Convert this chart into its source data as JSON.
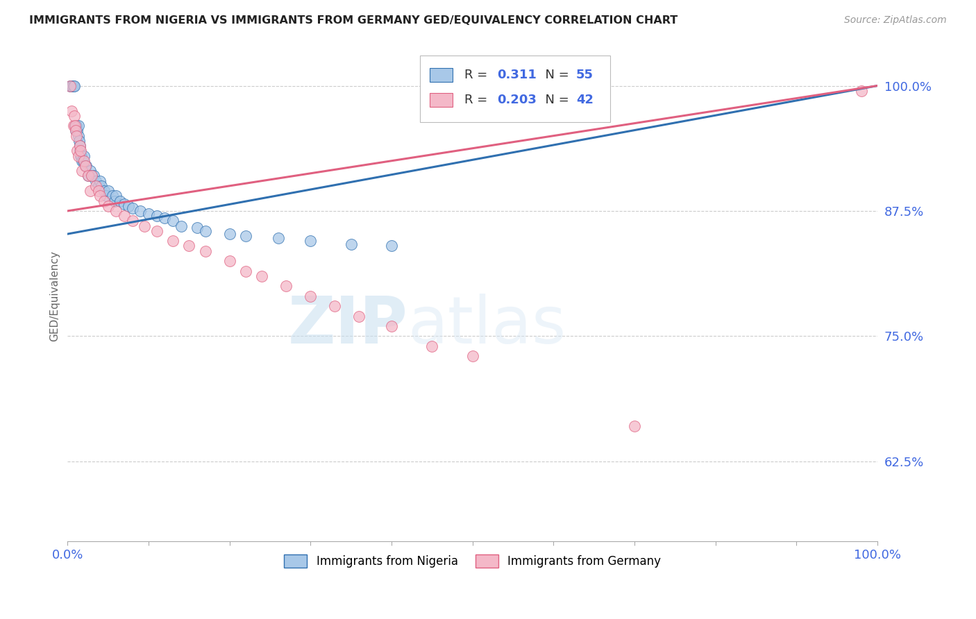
{
  "title": "IMMIGRANTS FROM NIGERIA VS IMMIGRANTS FROM GERMANY GED/EQUIVALENCY CORRELATION CHART",
  "source": "Source: ZipAtlas.com",
  "ylabel": "GED/Equivalency",
  "xlabel": "",
  "nigeria_label": "Immigrants from Nigeria",
  "germany_label": "Immigrants from Germany",
  "nigeria_R": 0.311,
  "nigeria_N": 55,
  "germany_R": 0.203,
  "germany_N": 42,
  "nigeria_color": "#a8c8e8",
  "germany_color": "#f4b8c8",
  "nigeria_line_color": "#3070b0",
  "germany_line_color": "#e06080",
  "xmin": 0.0,
  "xmax": 1.0,
  "ymin": 0.545,
  "ymax": 1.035,
  "yticks": [
    0.625,
    0.75,
    0.875,
    1.0
  ],
  "ytick_labels": [
    "62.5%",
    "75.0%",
    "87.5%",
    "100.0%"
  ],
  "xticks": [
    0.0,
    0.1,
    0.2,
    0.3,
    0.4,
    0.5,
    0.6,
    0.7,
    0.8,
    0.9,
    1.0
  ],
  "xtick_labels": [
    "0.0%",
    "",
    "",
    "",
    "",
    "",
    "",
    "",
    "",
    "",
    "100.0%"
  ],
  "axis_label_color": "#4169e1",
  "watermark_zip": "ZIP",
  "watermark_atlas": "atlas",
  "nigeria_x": [
    0.003,
    0.004,
    0.005,
    0.006,
    0.007,
    0.008,
    0.009,
    0.01,
    0.01,
    0.011,
    0.012,
    0.013,
    0.013,
    0.014,
    0.015,
    0.015,
    0.016,
    0.017,
    0.018,
    0.019,
    0.02,
    0.022,
    0.023,
    0.025,
    0.028,
    0.03,
    0.032,
    0.035,
    0.038,
    0.04,
    0.042,
    0.045,
    0.048,
    0.05,
    0.055,
    0.058,
    0.06,
    0.065,
    0.07,
    0.075,
    0.08,
    0.09,
    0.1,
    0.11,
    0.12,
    0.13,
    0.14,
    0.16,
    0.17,
    0.2,
    0.22,
    0.26,
    0.3,
    0.35,
    0.4
  ],
  "nigeria_y": [
    1.0,
    1.0,
    1.0,
    1.0,
    1.0,
    1.0,
    0.96,
    0.96,
    0.955,
    0.96,
    0.955,
    0.96,
    0.95,
    0.945,
    0.935,
    0.94,
    0.93,
    0.93,
    0.925,
    0.925,
    0.93,
    0.92,
    0.92,
    0.91,
    0.915,
    0.91,
    0.91,
    0.905,
    0.9,
    0.905,
    0.9,
    0.895,
    0.89,
    0.895,
    0.89,
    0.885,
    0.89,
    0.885,
    0.882,
    0.88,
    0.878,
    0.875,
    0.872,
    0.87,
    0.868,
    0.865,
    0.86,
    0.858,
    0.855,
    0.852,
    0.85,
    0.848,
    0.845,
    0.842,
    0.84
  ],
  "germany_x": [
    0.003,
    0.005,
    0.007,
    0.008,
    0.009,
    0.01,
    0.011,
    0.012,
    0.013,
    0.015,
    0.016,
    0.018,
    0.02,
    0.022,
    0.025,
    0.028,
    0.03,
    0.035,
    0.038,
    0.04,
    0.045,
    0.05,
    0.06,
    0.07,
    0.08,
    0.095,
    0.11,
    0.13,
    0.15,
    0.17,
    0.2,
    0.22,
    0.24,
    0.27,
    0.3,
    0.33,
    0.36,
    0.4,
    0.45,
    0.5,
    0.7,
    0.98
  ],
  "germany_y": [
    1.0,
    0.975,
    0.96,
    0.97,
    0.96,
    0.955,
    0.95,
    0.935,
    0.93,
    0.94,
    0.935,
    0.915,
    0.925,
    0.92,
    0.91,
    0.895,
    0.91,
    0.9,
    0.895,
    0.89,
    0.885,
    0.88,
    0.875,
    0.87,
    0.865,
    0.86,
    0.855,
    0.845,
    0.84,
    0.835,
    0.825,
    0.815,
    0.81,
    0.8,
    0.79,
    0.78,
    0.77,
    0.76,
    0.74,
    0.73,
    0.66,
    0.995
  ],
  "legend_box_color": "#ffffff",
  "legend_border_color": "#cccccc"
}
